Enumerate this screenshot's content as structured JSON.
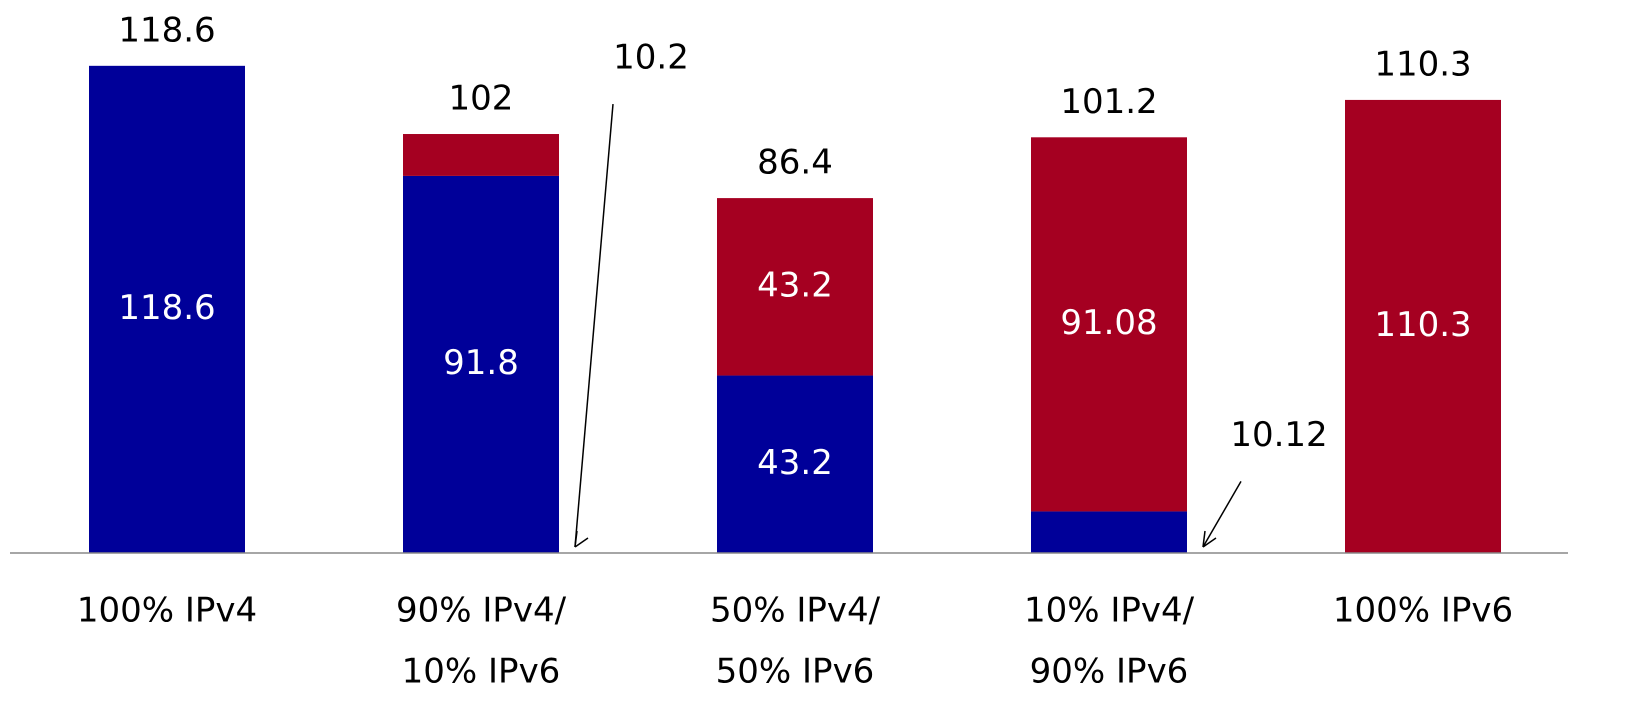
{
  "chart_data": {
    "type": "stacked_bar",
    "categories": [
      [
        "100% IPv4"
      ],
      [
        "90% IPv4/",
        "10% IPv6"
      ],
      [
        "50% IPv4/",
        "50% IPv6"
      ],
      [
        "10% IPv4/",
        "90% IPv6"
      ],
      [
        "100% IPv6"
      ]
    ],
    "series": [
      {
        "color": "#000099",
        "values": [
          118.6,
          91.8,
          43.2,
          10.12,
          null
        ]
      },
      {
        "color": "#a50021",
        "values": [
          null,
          10.2,
          43.2,
          91.08,
          110.3
        ]
      }
    ],
    "totals": [
      118.6,
      102,
      86.4,
      101.2,
      110.3
    ],
    "ylim": [
      0,
      130
    ]
  }
}
